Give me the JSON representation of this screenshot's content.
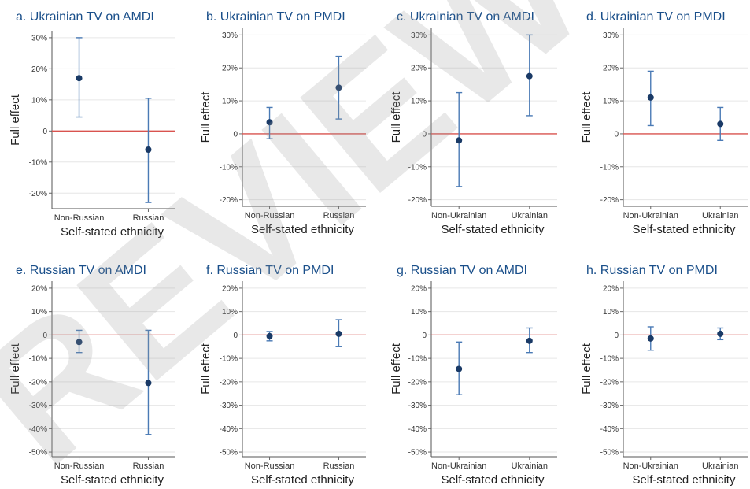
{
  "watermark": "REVIEW",
  "colors": {
    "title": "#1a4f8a",
    "marker": "#1a3a66",
    "errorbar": "#4a7ab5",
    "zero_line": "#d9534f",
    "grid": "#e6e6e6"
  },
  "chart_data": [
    {
      "type": "scatter",
      "title": "a. Ukrainian TV on AMDI",
      "xlabel": "Self-stated ethnicity",
      "ylabel": "Full effect",
      "categories": [
        "Non-Russian",
        "Russian"
      ],
      "values": [
        17,
        -6
      ],
      "ci_low": [
        4.5,
        -23
      ],
      "ci_high": [
        30,
        10.5
      ],
      "ylim": [
        -25,
        32
      ],
      "yticks": [
        -20,
        -10,
        0,
        10,
        20,
        30
      ],
      "yticklabels": [
        "-20%",
        "-10%",
        "0",
        "10%",
        "20%",
        "30%"
      ],
      "grid": true
    },
    {
      "type": "scatter",
      "title": "b. Ukrainian TV on PMDI",
      "xlabel": "Self-stated ethnicity",
      "ylabel": "Full effect",
      "categories": [
        "Non-Russian",
        "Russian"
      ],
      "values": [
        3.5,
        14
      ],
      "ci_low": [
        -1.5,
        4.5
      ],
      "ci_high": [
        8,
        23.5
      ],
      "ylim": [
        -22,
        32
      ],
      "yticks": [
        -20,
        -10,
        0,
        10,
        20,
        30
      ],
      "yticklabels": [
        "-20%",
        "-10%",
        "0",
        "10%",
        "20%",
        "30%"
      ],
      "grid": true
    },
    {
      "type": "scatter",
      "title": "c. Ukrainian TV on AMDI",
      "xlabel": "Self-stated ethnicity",
      "ylabel": "Full effect",
      "categories": [
        "Non-Ukrainian",
        "Ukrainian"
      ],
      "values": [
        -2,
        17.5
      ],
      "ci_low": [
        -16,
        5.5
      ],
      "ci_high": [
        12.5,
        30
      ],
      "ylim": [
        -22,
        32
      ],
      "yticks": [
        -20,
        -10,
        0,
        10,
        20,
        30
      ],
      "yticklabels": [
        "-20%",
        "-10%",
        "0",
        "10%",
        "20%",
        "30%"
      ],
      "grid": true
    },
    {
      "type": "scatter",
      "title": "d. Ukrainian TV on PMDI",
      "xlabel": "Self-stated ethnicity",
      "ylabel": "Full effect",
      "categories": [
        "Non-Ukrainian",
        "Ukrainian"
      ],
      "values": [
        11,
        3
      ],
      "ci_low": [
        2.5,
        -2
      ],
      "ci_high": [
        19,
        8
      ],
      "ylim": [
        -22,
        32
      ],
      "yticks": [
        -20,
        -10,
        0,
        10,
        20,
        30
      ],
      "yticklabels": [
        "-20%",
        "-10%",
        "0",
        "10%",
        "20%",
        "30%"
      ],
      "grid": true
    },
    {
      "type": "scatter",
      "title": "e. Russian TV on AMDI",
      "xlabel": "Self-stated ethnicity",
      "ylabel": "Full effect",
      "categories": [
        "Non-Russian",
        "Russian"
      ],
      "values": [
        -3,
        -20.5
      ],
      "ci_low": [
        -7.5,
        -42.5
      ],
      "ci_high": [
        2,
        2
      ],
      "ylim": [
        -52,
        23
      ],
      "yticks": [
        -50,
        -40,
        -30,
        -20,
        -10,
        0,
        10,
        20
      ],
      "yticklabels": [
        "-50%",
        "-40%",
        "-30%",
        "-20%",
        "-10%",
        "0",
        "10%",
        "20%"
      ],
      "grid": true
    },
    {
      "type": "scatter",
      "title": "f. Russian TV on PMDI",
      "xlabel": "Self-stated ethnicity",
      "ylabel": "Full effect",
      "categories": [
        "Non-Russian",
        "Russian"
      ],
      "values": [
        -0.5,
        0.5
      ],
      "ci_low": [
        -2.5,
        -5
      ],
      "ci_high": [
        1.5,
        6.5
      ],
      "ylim": [
        -52,
        23
      ],
      "yticks": [
        -50,
        -40,
        -30,
        -20,
        -10,
        0,
        10,
        20
      ],
      "yticklabels": [
        "-50%",
        "-40%",
        "-30%",
        "-20%",
        "-10%",
        "0",
        "10%",
        "20%"
      ],
      "grid": true
    },
    {
      "type": "scatter",
      "title": "g. Russian TV on AMDI",
      "xlabel": "Self-stated ethnicity",
      "ylabel": "Full effect",
      "categories": [
        "Non-Ukrainian",
        "Ukrainian"
      ],
      "values": [
        -14.5,
        -2.5
      ],
      "ci_low": [
        -25.5,
        -7.5
      ],
      "ci_high": [
        -3,
        3
      ],
      "ylim": [
        -52,
        23
      ],
      "yticks": [
        -50,
        -40,
        -30,
        -20,
        -10,
        0,
        10,
        20
      ],
      "yticklabels": [
        "-50%",
        "-40%",
        "-30%",
        "-20%",
        "-10%",
        "0",
        "10%",
        "20%"
      ],
      "grid": true
    },
    {
      "type": "scatter",
      "title": "h. Russian TV on PMDI",
      "xlabel": "Self-stated ethnicity",
      "ylabel": "Full effect",
      "categories": [
        "Non-Ukrainian",
        "Ukrainian"
      ],
      "values": [
        -1.5,
        0.5
      ],
      "ci_low": [
        -6.5,
        -2
      ],
      "ci_high": [
        3.5,
        3
      ],
      "ylim": [
        -52,
        23
      ],
      "yticks": [
        -50,
        -40,
        -30,
        -20,
        -10,
        0,
        10,
        20
      ],
      "yticklabels": [
        "-50%",
        "-40%",
        "-30%",
        "-20%",
        "-10%",
        "0",
        "10%",
        "20%"
      ],
      "grid": true
    }
  ]
}
